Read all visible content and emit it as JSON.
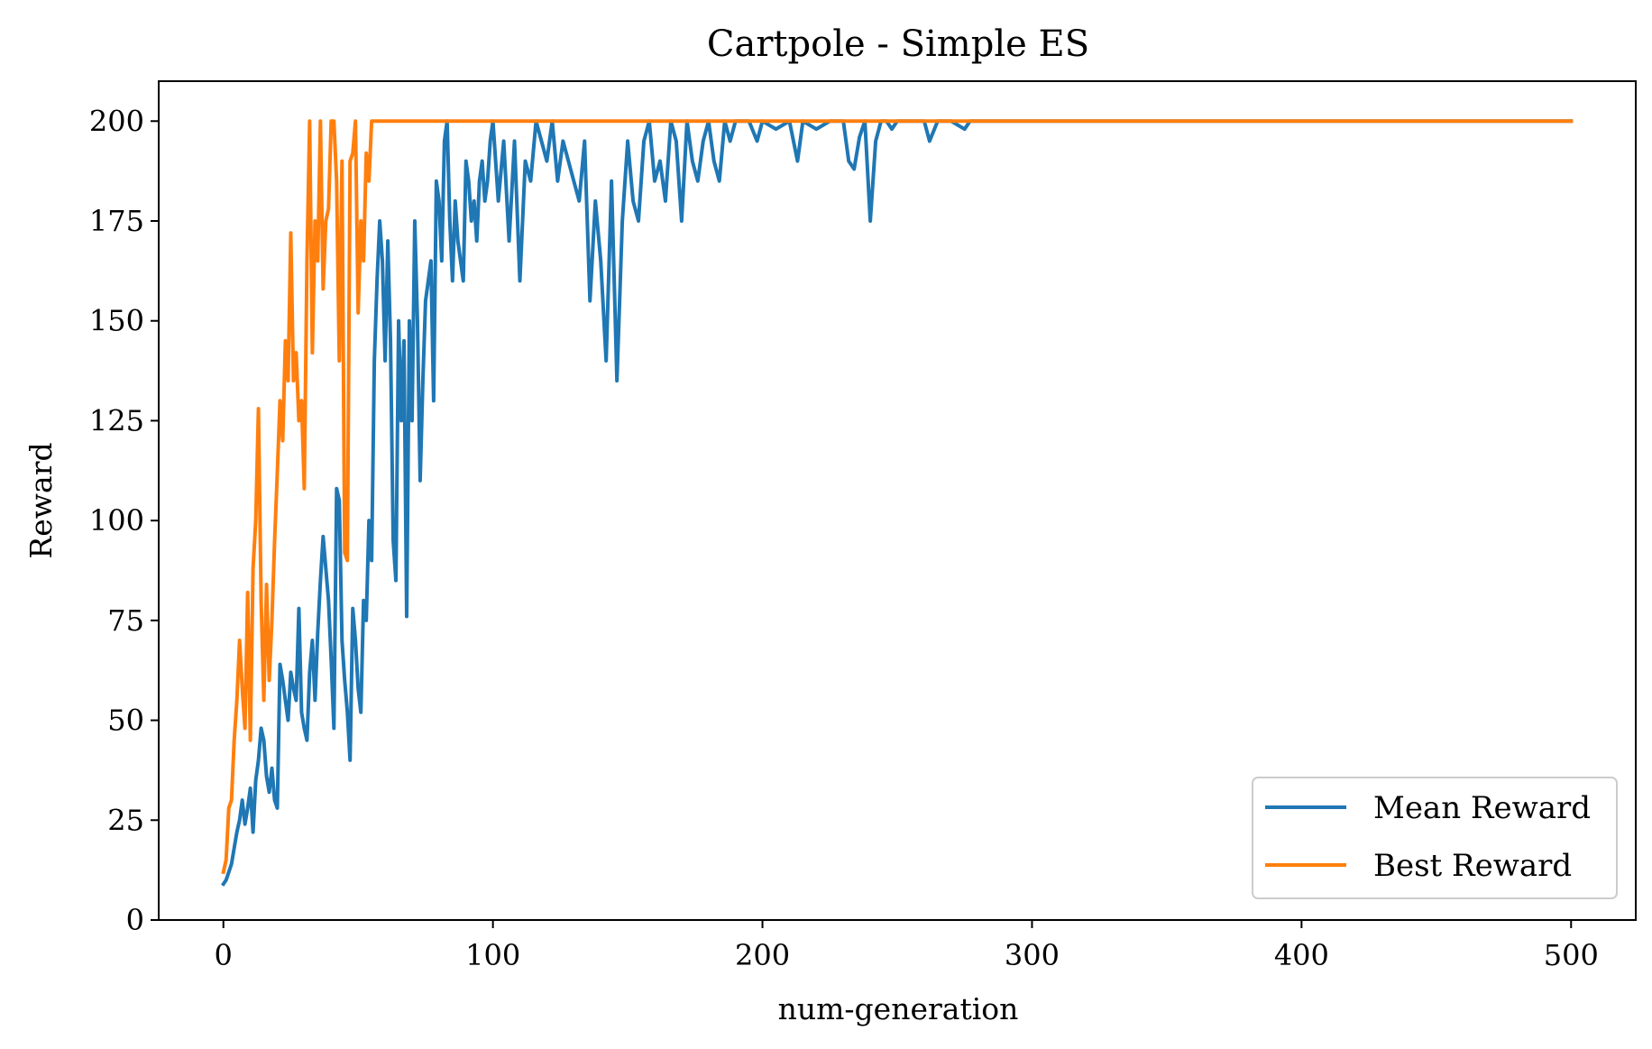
{
  "chart_data": {
    "type": "line",
    "title": "Cartpole - Simple ES",
    "xlabel": "num-generation",
    "ylabel": "Reward",
    "xlim": [
      -24,
      524
    ],
    "ylim": [
      0,
      210
    ],
    "xticks": [
      0,
      100,
      200,
      300,
      400,
      500
    ],
    "yticks": [
      0,
      25,
      50,
      75,
      100,
      125,
      150,
      175,
      200
    ],
    "grid": false,
    "legend_position": "lower-right",
    "series": [
      {
        "name": "Mean Reward",
        "color": "#1f77b4",
        "x": [
          0,
          1,
          2,
          3,
          4,
          5,
          6,
          7,
          8,
          9,
          10,
          11,
          12,
          13,
          14,
          15,
          16,
          17,
          18,
          19,
          20,
          21,
          22,
          23,
          24,
          25,
          26,
          27,
          28,
          29,
          30,
          31,
          32,
          33,
          34,
          35,
          36,
          37,
          38,
          39,
          40,
          41,
          42,
          43,
          44,
          45,
          46,
          47,
          48,
          49,
          50,
          51,
          52,
          53,
          54,
          55,
          56,
          57,
          58,
          59,
          60,
          61,
          62,
          63,
          64,
          65,
          66,
          67,
          68,
          69,
          70,
          71,
          72,
          73,
          74,
          75,
          76,
          77,
          78,
          79,
          80,
          81,
          82,
          83,
          84,
          85,
          86,
          87,
          88,
          89,
          90,
          91,
          92,
          93,
          94,
          95,
          96,
          97,
          98,
          99,
          100,
          102,
          104,
          106,
          108,
          110,
          112,
          114,
          116,
          118,
          120,
          122,
          124,
          126,
          128,
          130,
          132,
          134,
          136,
          138,
          140,
          142,
          144,
          146,
          148,
          150,
          152,
          154,
          156,
          158,
          160,
          162,
          164,
          166,
          168,
          170,
          172,
          174,
          176,
          178,
          180,
          182,
          184,
          186,
          188,
          190,
          195,
          198,
          200,
          205,
          210,
          213,
          215,
          220,
          225,
          230,
          232,
          234,
          236,
          238,
          240,
          242,
          244,
          246,
          248,
          250,
          255,
          260,
          262,
          265,
          270,
          275,
          277,
          280,
          500
        ],
        "y": [
          9,
          10,
          12,
          14,
          18,
          22,
          25,
          30,
          24,
          28,
          33,
          22,
          35,
          40,
          48,
          45,
          36,
          32,
          38,
          30,
          28,
          64,
          60,
          55,
          50,
          62,
          58,
          55,
          78,
          52,
          48,
          45,
          62,
          70,
          55,
          72,
          85,
          96,
          88,
          80,
          65,
          48,
          108,
          105,
          70,
          60,
          52,
          40,
          78,
          70,
          58,
          52,
          80,
          75,
          100,
          90,
          140,
          160,
          175,
          165,
          140,
          170,
          145,
          95,
          85,
          150,
          125,
          145,
          76,
          150,
          125,
          175,
          150,
          110,
          135,
          155,
          160,
          165,
          130,
          185,
          180,
          165,
          195,
          200,
          175,
          160,
          180,
          170,
          165,
          160,
          190,
          185,
          175,
          180,
          170,
          185,
          190,
          180,
          185,
          195,
          200,
          180,
          195,
          170,
          195,
          160,
          190,
          185,
          200,
          195,
          190,
          200,
          185,
          195,
          190,
          185,
          180,
          195,
          155,
          180,
          165,
          140,
          185,
          135,
          175,
          195,
          180,
          175,
          195,
          200,
          185,
          190,
          180,
          200,
          195,
          175,
          200,
          190,
          185,
          195,
          200,
          190,
          185,
          200,
          195,
          200,
          200,
          195,
          200,
          198,
          200,
          190,
          200,
          198,
          200,
          200,
          190,
          188,
          196,
          200,
          175,
          195,
          200,
          200,
          198,
          200,
          200,
          200,
          195,
          200,
          200,
          198,
          200,
          200,
          200
        ]
      },
      {
        "name": "Best Reward",
        "color": "#ff7f0e",
        "x": [
          0,
          1,
          2,
          3,
          4,
          5,
          6,
          7,
          8,
          9,
          10,
          11,
          12,
          13,
          14,
          15,
          16,
          17,
          18,
          19,
          20,
          21,
          22,
          23,
          24,
          25,
          26,
          27,
          28,
          29,
          30,
          31,
          32,
          33,
          34,
          35,
          36,
          37,
          38,
          39,
          40,
          41,
          42,
          43,
          44,
          45,
          46,
          47,
          48,
          49,
          50,
          51,
          52,
          53,
          54,
          55,
          56,
          57,
          500
        ],
        "y": [
          12,
          15,
          28,
          30,
          45,
          55,
          70,
          58,
          48,
          82,
          45,
          88,
          100,
          128,
          80,
          55,
          84,
          60,
          75,
          95,
          112,
          130,
          120,
          145,
          135,
          172,
          135,
          142,
          125,
          130,
          108,
          165,
          200,
          142,
          175,
          165,
          200,
          158,
          175,
          178,
          200,
          200,
          185,
          140,
          190,
          92,
          90,
          190,
          192,
          200,
          152,
          175,
          165,
          192,
          185,
          200,
          200,
          200,
          200
        ]
      }
    ]
  }
}
